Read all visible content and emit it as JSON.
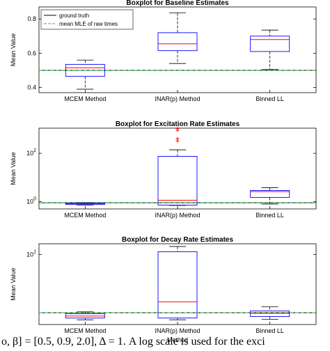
{
  "caption": "o, β] = [0.5, 0.9, 2.0], Δ = 1. A log scale is used for the exci",
  "chart_data": [
    {
      "type": "boxplot",
      "title": "Boxplot for Baseline Estimates",
      "ylabel": "Mean Value",
      "xlabel": "",
      "yscale": "linear",
      "ylim": [
        0.37,
        0.87
      ],
      "yticks": [
        0.4,
        0.6,
        0.8
      ],
      "ytick_labels": [
        "0.4",
        "0.6",
        "0.8"
      ],
      "categories": [
        "MCEM Method",
        "INAR(p) Method",
        "Binned LL"
      ],
      "boxes": [
        {
          "whisker_low": 0.39,
          "q1": 0.465,
          "median": 0.515,
          "q3": 0.535,
          "whisker_high": 0.56,
          "outliers": []
        },
        {
          "whisker_low": 0.54,
          "q1": 0.615,
          "median": 0.655,
          "q3": 0.72,
          "whisker_high": 0.835,
          "outliers": []
        },
        {
          "whisker_low": 0.505,
          "q1": 0.61,
          "median": 0.68,
          "q3": 0.7,
          "whisker_high": 0.735,
          "outliers": []
        }
      ],
      "reference_lines": [
        {
          "name": "ground truth",
          "value": 0.5,
          "style": "solid",
          "color": "#000000"
        },
        {
          "name": "mean MLE of raw times",
          "value": 0.5,
          "style": "dashed",
          "color": "#2fb44a"
        }
      ],
      "legend": {
        "position": "top-left",
        "entries": [
          "ground truth",
          "mean MLE of raw times"
        ]
      },
      "grid": false
    },
    {
      "type": "boxplot",
      "title": "Boxplot for Excitation Rate Estimates",
      "ylabel": "Mean Value",
      "xlabel": "",
      "yscale": "log",
      "ylim": [
        0.5,
        1100
      ],
      "yticks": [
        1,
        100
      ],
      "ytick_labels": [
        "10^0",
        "10^2"
      ],
      "categories": [
        "MCEM Method",
        "INAR(p) Method",
        "Binned LL"
      ],
      "boxes": [
        {
          "whisker_low": 0.72,
          "q1": 0.76,
          "median": 0.82,
          "q3": 0.86,
          "whisker_high": 0.9,
          "outliers": []
        },
        {
          "whisker_low": 0.7,
          "q1": 0.72,
          "median": 1.15,
          "q3": 75,
          "whisker_high": 140,
          "outliers": [
            330,
            400,
            900,
            1050
          ]
        },
        {
          "whisker_low": 0.8,
          "q1": 1.5,
          "median": 2.6,
          "q3": 2.9,
          "whisker_high": 3.8,
          "outliers": []
        }
      ],
      "reference_lines": [
        {
          "name": "ground truth",
          "value": 0.9,
          "style": "solid",
          "color": "#000000"
        },
        {
          "name": "mean MLE of raw times",
          "value": 0.9,
          "style": "dashed",
          "color": "#2fb44a"
        }
      ],
      "grid": false
    },
    {
      "type": "boxplot",
      "title": "Boxplot for Decay Rate Estimates",
      "ylabel": "Mean Value",
      "xlabel": "Method",
      "yscale": "log",
      "ylim": [
        1.4,
        13.5
      ],
      "yticks": [
        10
      ],
      "ytick_labels": [
        "10^1"
      ],
      "categories": [
        "MCEM Method",
        "INAR(p) Method",
        "Binned LL"
      ],
      "boxes": [
        {
          "whisker_low": 1.6,
          "q1": 1.68,
          "median": 1.78,
          "q3": 1.9,
          "whisker_high": 2.0,
          "outliers": []
        },
        {
          "whisker_low": 1.6,
          "q1": 1.68,
          "median": 2.65,
          "q3": 10.8,
          "whisker_high": 12.5,
          "outliers": []
        },
        {
          "whisker_low": 1.62,
          "q1": 1.75,
          "median": 1.92,
          "q3": 2.05,
          "whisker_high": 2.3,
          "outliers": []
        }
      ],
      "reference_lines": [
        {
          "name": "ground truth",
          "value": 1.95,
          "style": "solid",
          "color": "#000000"
        },
        {
          "name": "mean MLE of raw times",
          "value": 1.95,
          "style": "dashed",
          "color": "#2fb44a"
        }
      ],
      "grid": false
    }
  ],
  "colors": {
    "box": "#0000ff",
    "median": "#ff0000",
    "whisker": "#000000",
    "outlier": "#ff0000",
    "axis": "#000000",
    "truth": "#000000",
    "mle": "#2fb44a"
  }
}
